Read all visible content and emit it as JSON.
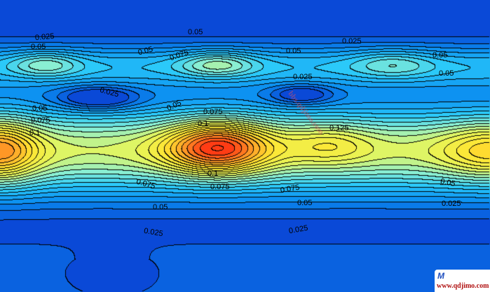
{
  "chart_data": {
    "type": "contour",
    "title": "",
    "xlabel": "",
    "ylabel": "",
    "level_step": 0.00625,
    "value_range": [
      0,
      0.14
    ],
    "colormap": [
      "#0a3cd2",
      "#0a8cf0",
      "#28c8fa",
      "#8cf0d2",
      "#e6f55a",
      "#ffe632",
      "#ffa028",
      "#ff3c14"
    ],
    "line_color": "#000000",
    "contour_labels": [
      {
        "text": "0.025"
      },
      {
        "text": "0.05"
      },
      {
        "text": "0.025"
      },
      {
        "text": "0.05"
      },
      {
        "text": "0.075"
      },
      {
        "text": "0.05"
      },
      {
        "text": "0.025"
      },
      {
        "text": "0.05"
      },
      {
        "text": "0.05"
      },
      {
        "text": "0.025"
      },
      {
        "text": "0.05"
      },
      {
        "text": "0.05"
      },
      {
        "text": "0.05"
      },
      {
        "text": "0.075"
      },
      {
        "text": "0.1"
      },
      {
        "text": "0.075"
      },
      {
        "text": "0.1"
      },
      {
        "text": "0.125"
      },
      {
        "text": "0.1"
      },
      {
        "text": "0.075"
      },
      {
        "text": "0.075"
      },
      {
        "text": "0.075"
      },
      {
        "text": "0.05"
      },
      {
        "text": "0.05"
      },
      {
        "text": "0.05"
      },
      {
        "text": "0.025"
      },
      {
        "text": "0.025"
      },
      {
        "text": "0.025"
      }
    ]
  },
  "watermark": {
    "diagonal_text": "bbs.qdjimo.com",
    "logo_mark": "M",
    "logo_url": "www.qdjimo.com"
  }
}
